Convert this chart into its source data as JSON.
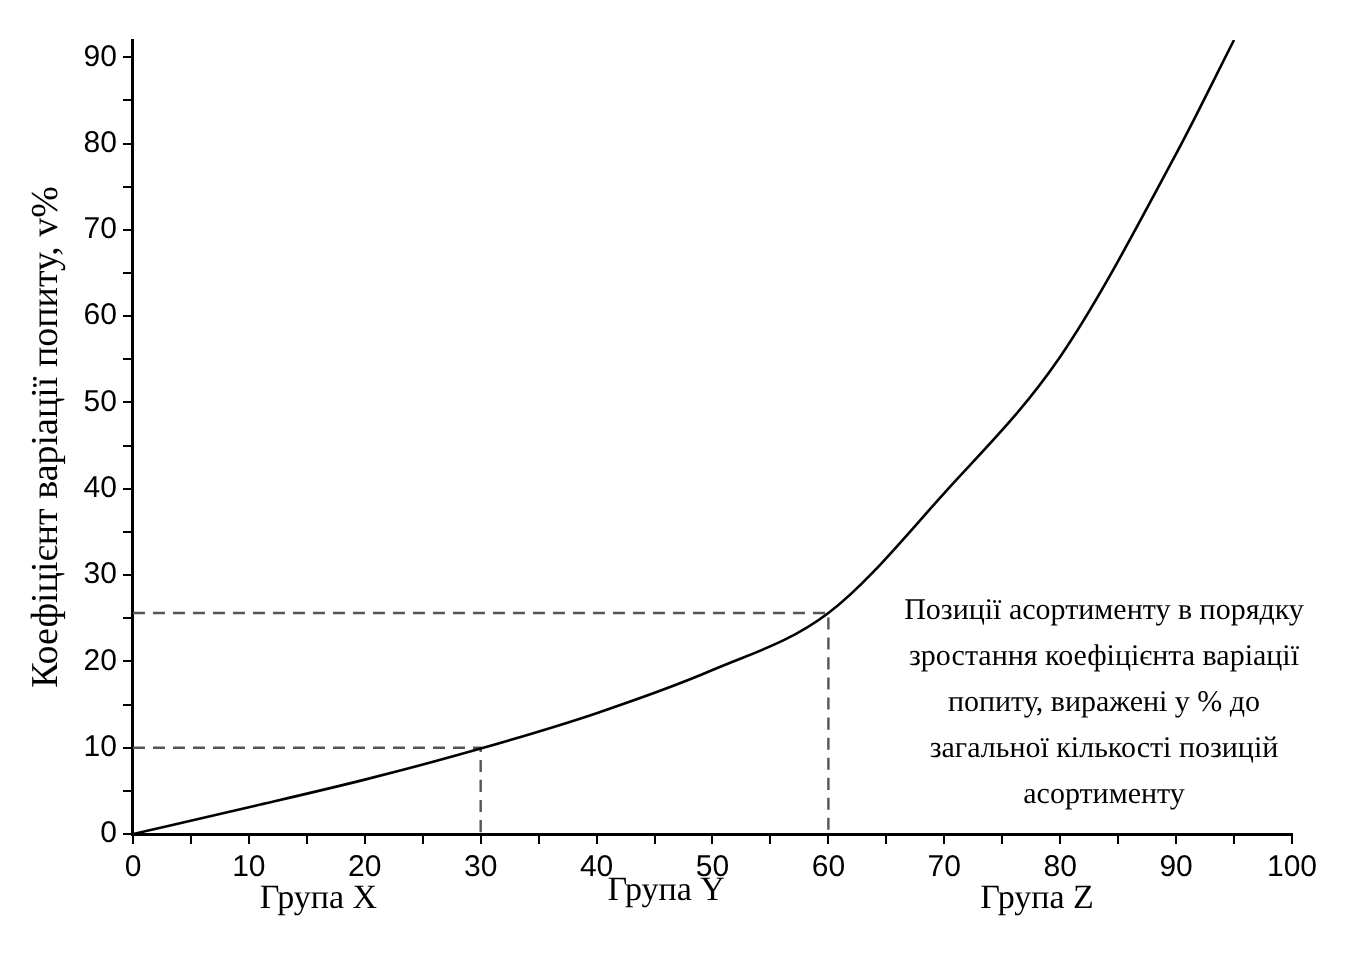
{
  "chart_data": {
    "type": "line",
    "ylabel": "Коефіцієнт варіації попиту, v%",
    "xlim": [
      0,
      100
    ],
    "ylim": [
      0,
      92
    ],
    "xticks": [
      0,
      {
        "value": 5,
        "label": null
      },
      10,
      {
        "value": 15,
        "label": null
      },
      20,
      {
        "value": 25,
        "label": null
      },
      30,
      {
        "value": 35,
        "label": null
      },
      40,
      {
        "value": 45,
        "label": null
      },
      50,
      {
        "value": 55,
        "label": null
      },
      60,
      {
        "value": 65,
        "label": null
      },
      70,
      {
        "value": 75,
        "label": null
      },
      80,
      {
        "value": 85,
        "label": null
      },
      90,
      {
        "value": 95,
        "label": null
      },
      100
    ],
    "yticks": [
      0,
      {
        "value": 5,
        "label": null
      },
      10,
      {
        "value": 15,
        "label": null
      },
      20,
      {
        "value": 25,
        "label": null
      },
      30,
      {
        "value": 35,
        "label": null
      },
      40,
      {
        "value": 45,
        "label": null
      },
      50,
      {
        "value": 55,
        "label": null
      },
      60,
      {
        "value": 65,
        "label": null
      },
      70,
      {
        "value": 75,
        "label": null
      },
      80,
      {
        "value": 85,
        "label": null
      },
      90
    ],
    "series": [
      {
        "color": "#000000",
        "x": [
          0,
          10,
          20,
          30,
          40,
          50,
          60,
          70,
          80,
          90,
          95
        ],
        "values": [
          0,
          3.1,
          6.3,
          9.9,
          14,
          19,
          25.6,
          39.5,
          55.3,
          78.8,
          92
        ]
      },
      {
        "color": "#555555",
        "line_style": "dashed",
        "x": [
          0,
          30,
          30
        ],
        "values": [
          10,
          10,
          0
        ]
      },
      {
        "color": "#555555",
        "line_style": "dashed",
        "x": [
          0,
          60,
          60
        ],
        "values": [
          25.6,
          25.6,
          0
        ]
      }
    ],
    "annotations": [
      "Група X",
      "Група Y",
      "Група Z",
      "Позиції асортименту в порядку зростання коефіцієнта варіації попиту, виражені у % до загальної кількості позицій асортименту"
    ],
    "marker": "none",
    "legend": false,
    "grid": false
  }
}
